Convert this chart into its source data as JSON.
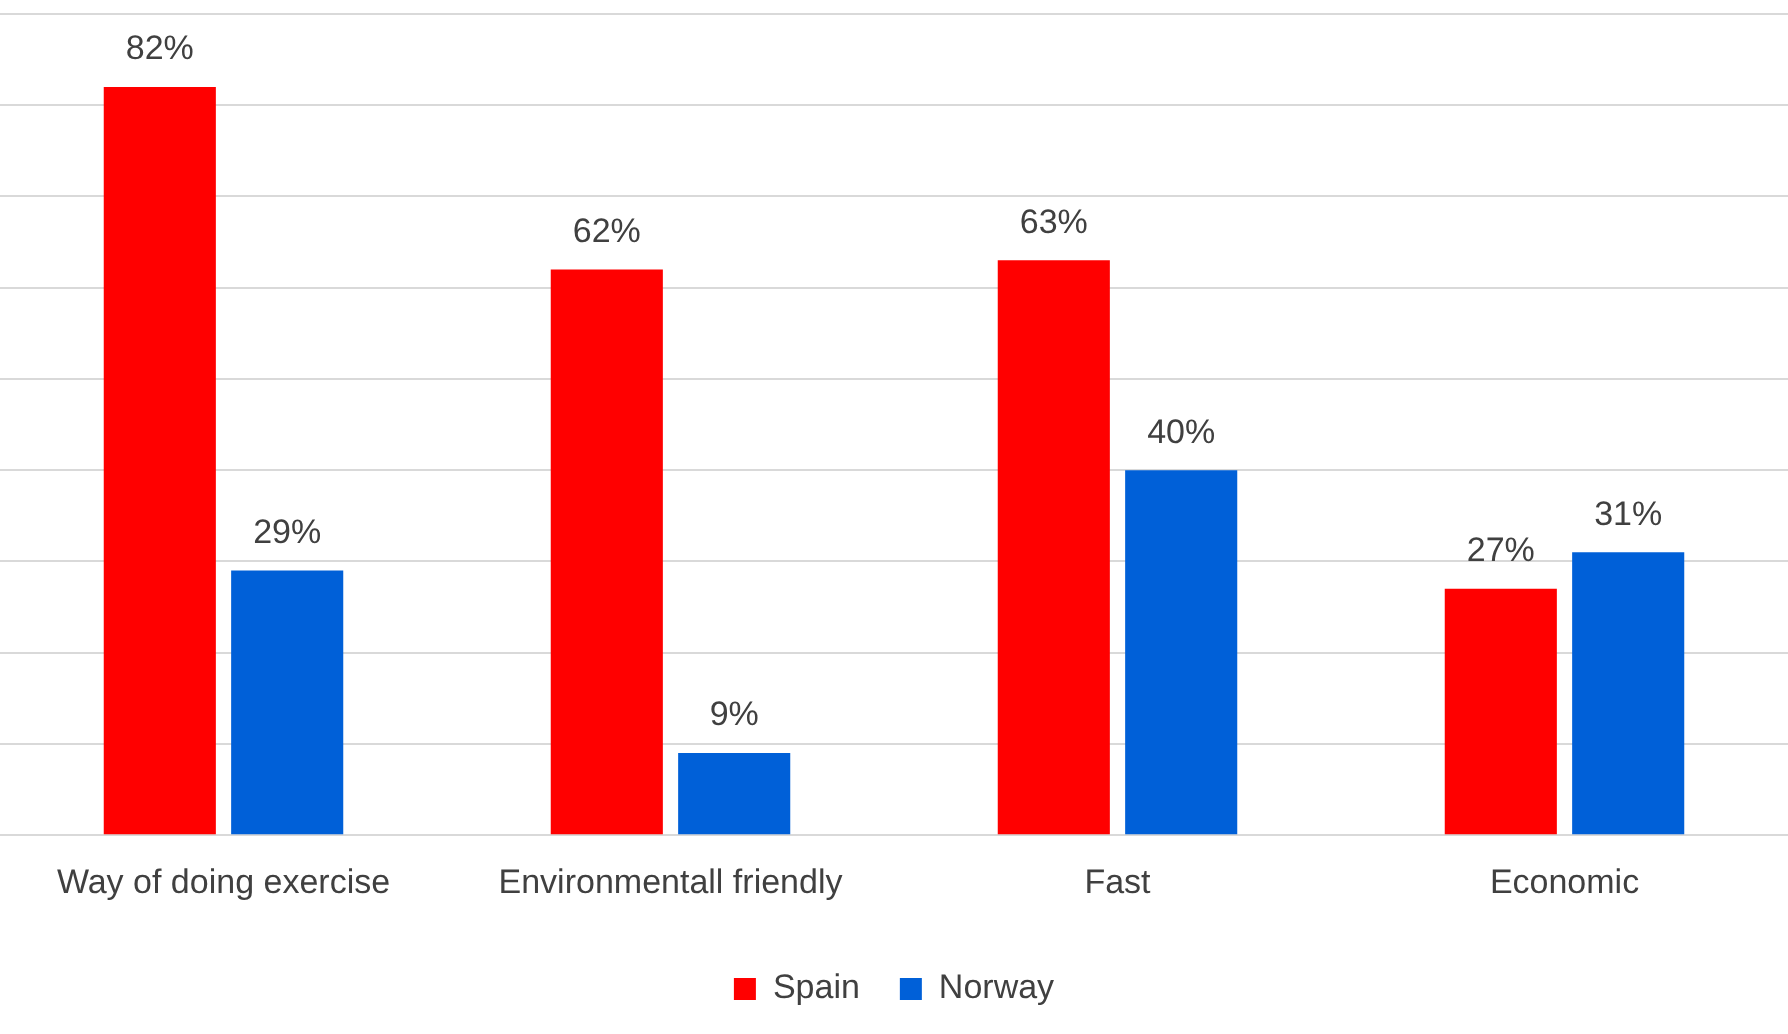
{
  "chart_data": {
    "type": "bar",
    "categories": [
      "Way of doing exercise",
      "Environmentall friendly",
      "Fast",
      "Economic"
    ],
    "series": [
      {
        "name": "Spain",
        "color": "#ff0000",
        "values": [
          82,
          62,
          63,
          27
        ],
        "value_labels": [
          "82%",
          "62%",
          "63%",
          "27%"
        ]
      },
      {
        "name": "Norway",
        "color": "#0060d8",
        "values": [
          29,
          9,
          40,
          31
        ],
        "value_labels": [
          "29%",
          "9%",
          "40%",
          "31%"
        ]
      }
    ],
    "grid": "y",
    "tick_labels": "x",
    "legend": "bottom"
  }
}
